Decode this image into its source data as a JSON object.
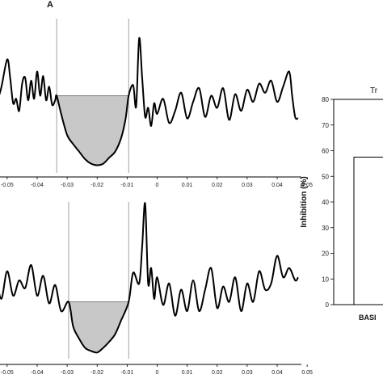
{
  "panel_label": "A",
  "chart_data": [
    {
      "type": "line",
      "xlabel": "",
      "ylabel": "",
      "x_ticks": [
        "-0.05",
        "-0.04",
        "-0.03",
        "-0.02",
        "-0.01",
        "0",
        "0.01",
        "0.02",
        "0.03",
        "0.04",
        "0.05"
      ],
      "xlim": [
        -0.054,
        0.047
      ],
      "ylim": [
        0,
        1
      ],
      "markers": [
        -0.0335,
        -0.0095
      ],
      "shaded_region": {
        "from": -0.0335,
        "to": -0.0095,
        "baseline": 0.5
      },
      "series": [
        {
          "x": [
            -0.054,
            -0.052,
            -0.05,
            -0.049,
            -0.048,
            -0.047,
            -0.046,
            -0.045,
            -0.044,
            -0.043,
            -0.042,
            -0.041,
            -0.04,
            -0.039,
            -0.038,
            -0.037,
            -0.036,
            -0.035,
            -0.034,
            -0.0335,
            -0.032,
            -0.03,
            -0.028,
            -0.026,
            -0.024,
            -0.022,
            -0.02,
            -0.018,
            -0.016,
            -0.014,
            -0.012,
            -0.0105,
            -0.0095,
            -0.008,
            -0.007,
            -0.006,
            -0.005,
            -0.004,
            -0.003,
            -0.002,
            -0.001,
            0.0,
            0.002,
            0.004,
            0.006,
            0.008,
            0.01,
            0.012,
            0.014,
            0.016,
            0.018,
            0.02,
            0.022,
            0.024,
            0.026,
            0.028,
            0.03,
            0.032,
            0.034,
            0.036,
            0.038,
            0.04,
            0.042,
            0.044,
            0.045,
            0.046,
            0.047
          ],
          "y": [
            0.42,
            0.55,
            0.74,
            0.62,
            0.45,
            0.48,
            0.4,
            0.58,
            0.62,
            0.47,
            0.6,
            0.48,
            0.66,
            0.5,
            0.63,
            0.47,
            0.56,
            0.44,
            0.47,
            0.5,
            0.38,
            0.24,
            0.18,
            0.13,
            0.08,
            0.05,
            0.04,
            0.05,
            0.09,
            0.13,
            0.22,
            0.35,
            0.5,
            0.57,
            0.43,
            0.88,
            0.62,
            0.36,
            0.42,
            0.3,
            0.45,
            0.38,
            0.48,
            0.32,
            0.4,
            0.52,
            0.35,
            0.46,
            0.55,
            0.36,
            0.5,
            0.42,
            0.55,
            0.34,
            0.51,
            0.4,
            0.54,
            0.46,
            0.58,
            0.52,
            0.6,
            0.46,
            0.56,
            0.66,
            0.5,
            0.36,
            0.35
          ]
        }
      ]
    },
    {
      "type": "line",
      "xlabel": "",
      "ylabel": "",
      "x_ticks": [
        "-0.05",
        "-0.04",
        "-0.03",
        "-0.02",
        "-0.01",
        "0",
        "0.01",
        "0.02",
        "0.03",
        "0.04",
        "0.05"
      ],
      "xlim": [
        -0.054,
        0.047
      ],
      "ylim": [
        0,
        1
      ],
      "markers": [
        -0.0295,
        -0.0095
      ],
      "shaded_region": {
        "from": -0.0295,
        "to": -0.0095,
        "baseline": 0.36
      },
      "series": [
        {
          "x": [
            -0.054,
            -0.052,
            -0.05,
            -0.048,
            -0.046,
            -0.044,
            -0.042,
            -0.04,
            -0.038,
            -0.036,
            -0.034,
            -0.032,
            -0.0295,
            -0.028,
            -0.026,
            -0.024,
            -0.022,
            -0.02,
            -0.018,
            -0.016,
            -0.014,
            -0.012,
            -0.0095,
            -0.008,
            -0.006,
            -0.005,
            -0.004,
            -0.003,
            -0.002,
            -0.001,
            0.0,
            0.002,
            0.004,
            0.006,
            0.008,
            0.01,
            0.012,
            0.014,
            0.016,
            0.018,
            0.02,
            0.022,
            0.024,
            0.026,
            0.028,
            0.03,
            0.032,
            0.034,
            0.036,
            0.038,
            0.04,
            0.042,
            0.044,
            0.046,
            0.047
          ],
          "y": [
            0.58,
            0.38,
            0.56,
            0.4,
            0.5,
            0.45,
            0.6,
            0.4,
            0.53,
            0.35,
            0.47,
            0.3,
            0.36,
            0.2,
            0.12,
            0.06,
            0.04,
            0.03,
            0.06,
            0.1,
            0.15,
            0.24,
            0.36,
            0.55,
            0.48,
            0.72,
            1.0,
            0.48,
            0.58,
            0.38,
            0.52,
            0.34,
            0.48,
            0.27,
            0.44,
            0.3,
            0.5,
            0.3,
            0.44,
            0.58,
            0.32,
            0.46,
            0.36,
            0.52,
            0.3,
            0.48,
            0.36,
            0.56,
            0.44,
            0.48,
            0.66,
            0.52,
            0.58,
            0.5,
            0.52
          ]
        }
      ]
    },
    {
      "type": "bar",
      "title": "Tr",
      "ylabel": "Inhibition (%)",
      "categories": [
        "BASI"
      ],
      "values": [
        57.5
      ],
      "ylim": [
        0,
        80
      ],
      "y_ticks": [
        "0",
        "10",
        "20",
        "30",
        "40",
        "50",
        "60",
        "70",
        "80"
      ]
    }
  ]
}
